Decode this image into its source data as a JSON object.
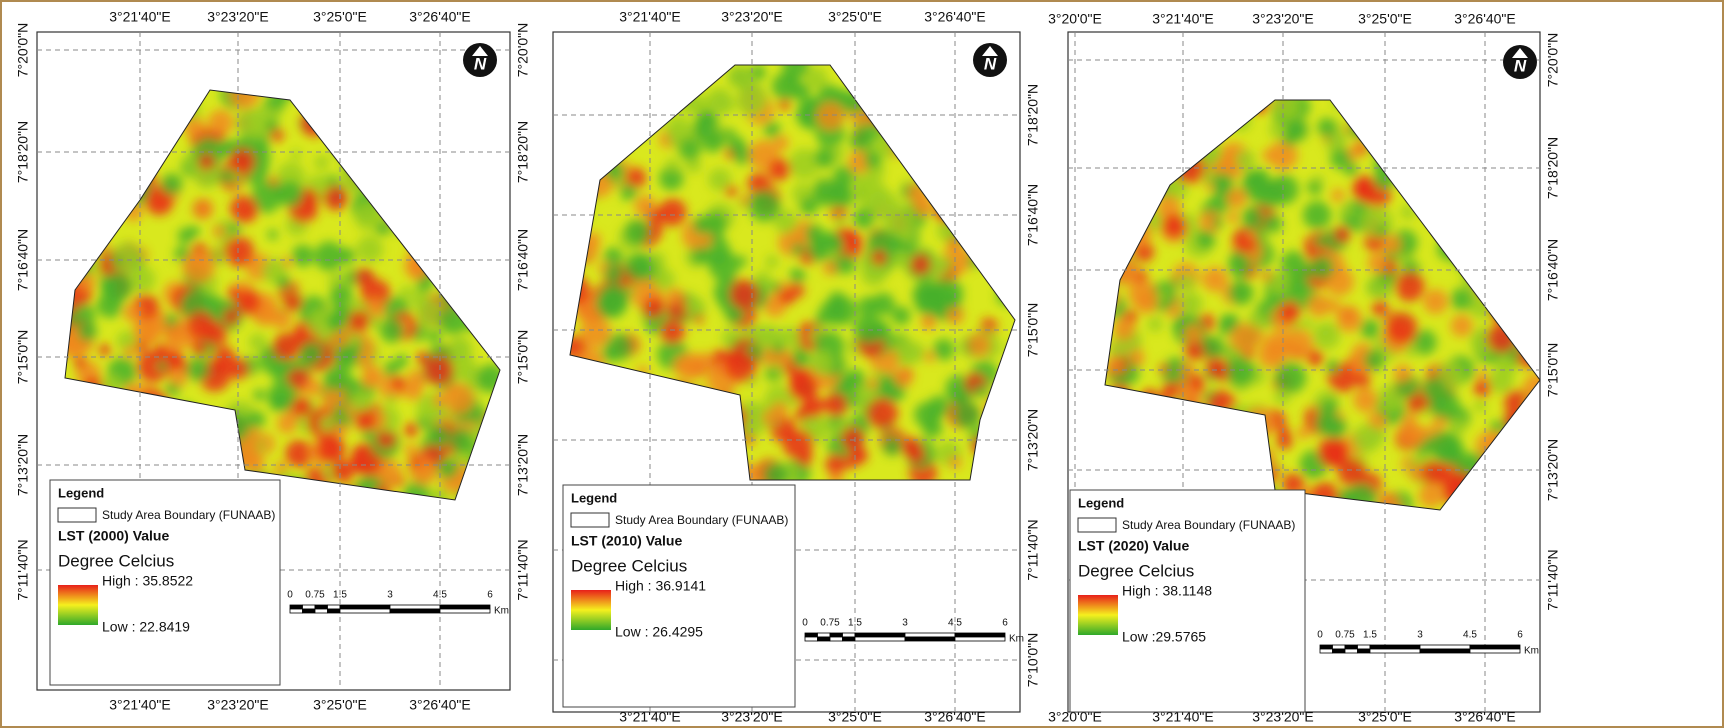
{
  "panels": [
    {
      "top_labels": [
        "3°21'40\"E",
        "3°23'20\"E",
        "3°25'0\"E",
        "3°26'40\"E"
      ],
      "bottom_labels": [
        "3°21'40\"E",
        "3°23'20\"E",
        "3°25'0\"E",
        "3°26'40\"E"
      ],
      "left_labels": [
        "7°20'0\"N",
        "7°18'20\"N",
        "7°16'40\"N",
        "7°15'0\"N",
        "7°13'20\"N",
        "7°11'40\"N"
      ],
      "right_labels": [
        "7°20'0\"N",
        "7°18'20\"N",
        "7°16'40\"N",
        "7°15'0\"N",
        "7°13'20\"N",
        "7°11'40\"N"
      ],
      "north": "N",
      "legend": {
        "title": "Legend",
        "boundary": "Study Area Boundary (FUNAAB)",
        "variable": "LST (2000) Value",
        "unit": "Degree Celcius",
        "high": "High : 35.8522",
        "low": "Low : 22.8419"
      },
      "scale": {
        "ticks": [
          "0",
          "0.75",
          "1.5",
          "3",
          "4.5",
          "6"
        ],
        "unit": "Km"
      }
    },
    {
      "top_labels": [
        "3°21'40\"E",
        "3°23'20\"E",
        "3°25'0\"E",
        "3°26'40\"E"
      ],
      "bottom_labels": [
        "3°21'40\"E",
        "3°23'20\"E",
        "3°25'0\"E",
        "3°26'40\"E"
      ],
      "left_labels": [],
      "right_labels": [
        "7°18'20\"N",
        "7°16'40\"N",
        "7°15'0\"N",
        "7°13'20\"N",
        "7°11'40\"N",
        "7°10'0\"N"
      ],
      "north": "N",
      "legend": {
        "title": "Legend",
        "boundary": "Study Area Boundary (FUNAAB)",
        "variable": "LST (2010) Value",
        "unit": "Degree Celcius",
        "high": "High : 36.9141",
        "low": "Low : 26.4295"
      },
      "scale": {
        "ticks": [
          "0",
          "0.75",
          "1.5",
          "3",
          "4.5",
          "6"
        ],
        "unit": "Km"
      }
    },
    {
      "top_labels": [
        "3°20'0\"E",
        "3°21'40\"E",
        "3°23'20\"E",
        "3°25'0\"E",
        "3°26'40\"E"
      ],
      "bottom_labels": [
        "3°20'0\"E",
        "3°21'40\"E",
        "3°23'20\"E",
        "3°25'0\"E",
        "3°26'40\"E"
      ],
      "left_labels": [],
      "right_labels": [
        "7°20'0\"N",
        "7°18'20\"N",
        "7°16'40\"N",
        "7°15'0\"N",
        "7°13'20\"N",
        "7°11'40\"N"
      ],
      "north": "N",
      "legend": {
        "title": "Legend",
        "boundary": "Study Area Boundary (FUNAAB)",
        "variable": "LST (2020) Value",
        "unit": "Degree Celcius",
        "high": "High : 38.1148",
        "low": "Low :29.5765"
      },
      "scale": {
        "ticks": [
          "0",
          "0.75",
          "1.5",
          "3",
          "4.5",
          "6"
        ],
        "unit": "Km"
      }
    }
  ]
}
